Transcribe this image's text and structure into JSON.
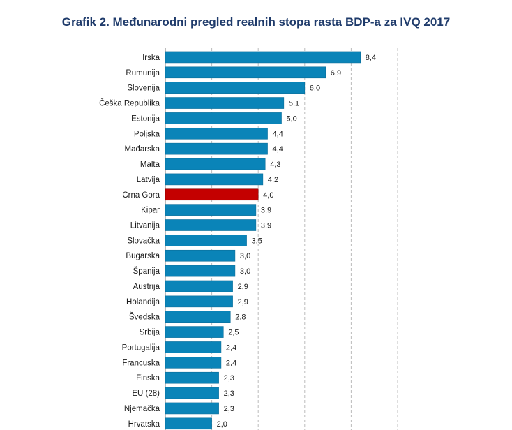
{
  "colors": {
    "bar": "#0a84b8",
    "highlight": "#c40000",
    "grid": "#bcbcbc"
  },
  "chart_data": {
    "type": "bar",
    "orientation": "horizontal",
    "title": "Grafik 2. Međunarodni pregled realnih stopa rasta BDP-a za IVQ 2017",
    "xlabel": "",
    "ylabel": "",
    "xlim": [
      0,
      10
    ],
    "grid": true,
    "highlight": "Crna Gora",
    "categories": [
      "Irska",
      "Rumunija",
      "Slovenija",
      "Češka Republika",
      "Estonija",
      "Poljska",
      "Mađarska",
      "Malta",
      "Latvija",
      "Crna Gora",
      "Kipar",
      "Litvanija",
      "Slovačka",
      "Bugarska",
      "Španija",
      "Austrija",
      "Holandija",
      "Švedska",
      "Srbija",
      "Portugalija",
      "Francuska",
      "Finska",
      "EU (28)",
      "Njemačka",
      "Hrvatska"
    ],
    "values": [
      8.4,
      6.9,
      6.0,
      5.1,
      5.0,
      4.4,
      4.4,
      4.3,
      4.2,
      4.0,
      3.9,
      3.9,
      3.5,
      3.0,
      3.0,
      2.9,
      2.9,
      2.8,
      2.5,
      2.4,
      2.4,
      2.3,
      2.3,
      2.3,
      2.0
    ],
    "value_labels": [
      "8,4",
      "6,9",
      "6,0",
      "5,1",
      "5,0",
      "4,4",
      "4,4",
      "4,3",
      "4,2",
      "4,0",
      "3,9",
      "3,9",
      "3,5",
      "3,0",
      "3,0",
      "2,9",
      "2,9",
      "2,8",
      "2,5",
      "2,4",
      "2,4",
      "2,3",
      "2,3",
      "2,3",
      "2,0"
    ]
  }
}
